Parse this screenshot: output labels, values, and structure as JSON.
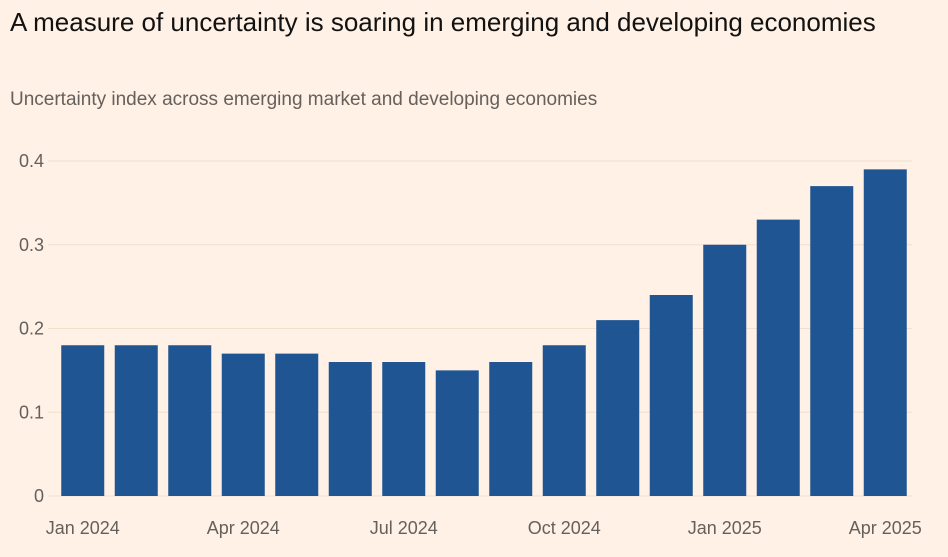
{
  "title": "A measure of uncertainty is soaring in emerging and developing economies",
  "subtitle": "Uncertainty index across emerging market and developing economies",
  "colors": {
    "background": "#FFF1E5",
    "bar": "#1F5592",
    "gridline": "#F2DFCE",
    "text": "#66605C"
  },
  "chart_data": {
    "type": "bar",
    "categories": [
      "Jan 2024",
      "Feb 2024",
      "Mar 2024",
      "Apr 2024",
      "May 2024",
      "Jun 2024",
      "Jul 2024",
      "Aug 2024",
      "Sep 2024",
      "Oct 2024",
      "Nov 2024",
      "Dec 2024",
      "Jan 2025",
      "Feb 2025",
      "Mar 2025",
      "Apr 2025"
    ],
    "values": [
      0.18,
      0.18,
      0.18,
      0.17,
      0.17,
      0.16,
      0.16,
      0.15,
      0.16,
      0.18,
      0.21,
      0.24,
      0.3,
      0.33,
      0.37,
      0.39
    ],
    "x_tick_labels": [
      {
        "category_index": 0,
        "label": "Jan 2024"
      },
      {
        "category_index": 3,
        "label": "Apr 2024"
      },
      {
        "category_index": 6,
        "label": "Jul 2024"
      },
      {
        "category_index": 9,
        "label": "Oct 2024"
      },
      {
        "category_index": 12,
        "label": "Jan 2025"
      },
      {
        "category_index": 15,
        "label": "Apr 2025"
      }
    ],
    "y_ticks": [
      0,
      0.1,
      0.2,
      0.3,
      0.4
    ],
    "y_tick_labels": [
      "0",
      "0.1",
      "0.2",
      "0.3",
      "0.4"
    ],
    "ylim": [
      0,
      0.4
    ],
    "grid": true
  }
}
